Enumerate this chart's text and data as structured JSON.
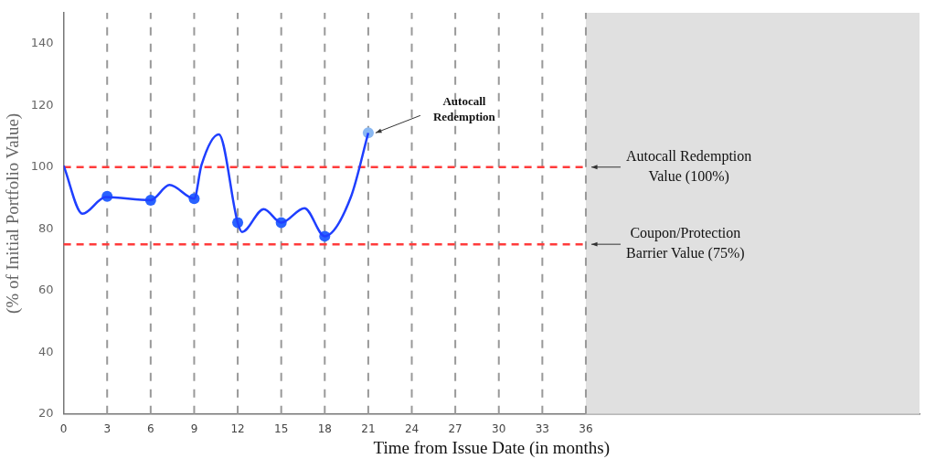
{
  "chart_data": {
    "type": "line",
    "xlabel": "Time from Issue Date (in months)",
    "ylabel": "(% of Initial Portfolio Value)",
    "xlim": [
      0,
      59
    ],
    "xticks": [
      0,
      3,
      6,
      9,
      12,
      15,
      18,
      21,
      24,
      27,
      30,
      33,
      36
    ],
    "ylim": [
      20,
      150
    ],
    "yticks": [
      20,
      40,
      60,
      80,
      100,
      120,
      140
    ],
    "grid": "x",
    "legend": false,
    "series": [
      {
        "type": "line",
        "color": "#1f3fff",
        "marker": "none",
        "x": [
          0,
          1.3,
          2.9,
          6,
          7.3,
          9,
          9.5,
          10.7,
          12,
          12.3,
          13.8,
          15,
          16.6,
          18,
          19.8,
          21
        ],
        "values": [
          100.5,
          84.9,
          90.3,
          89.3,
          94.2,
          89.8,
          100.6,
          110.6,
          82.0,
          79.0,
          86.4,
          82.0,
          86.7,
          77.6,
          90.3,
          111.1
        ]
      },
      {
        "type": "scatter",
        "marker": "circle",
        "x": [
          3,
          6,
          9,
          12,
          15,
          18,
          21
        ],
        "values": [
          90.5,
          89.3,
          89.8,
          82.0,
          82.0,
          77.6,
          111.1
        ],
        "colors": [
          "#2962ff",
          "#2962ff",
          "#2962ff",
          "#2962ff",
          "#2962ff",
          "#2962ff",
          "#8ab8f2"
        ]
      }
    ],
    "ref_lines": [
      {
        "axis": "y",
        "value": 100,
        "label": "Autocall Redemption Value (100%)",
        "color": "#ff3b3b",
        "line_style": "dashed"
      },
      {
        "axis": "y",
        "value": 75,
        "label": "Coupon/Protection Barrier Value (75%)",
        "color": "#ff3b3b",
        "line_style": "dashed"
      }
    ],
    "bands": [
      {
        "axis": "x",
        "from": 36,
        "to": 59,
        "color": "#e0e0e0"
      }
    ],
    "annotations": [
      {
        "text": "Autocall Redemption",
        "x": 21,
        "y": 111.1
      }
    ]
  }
}
